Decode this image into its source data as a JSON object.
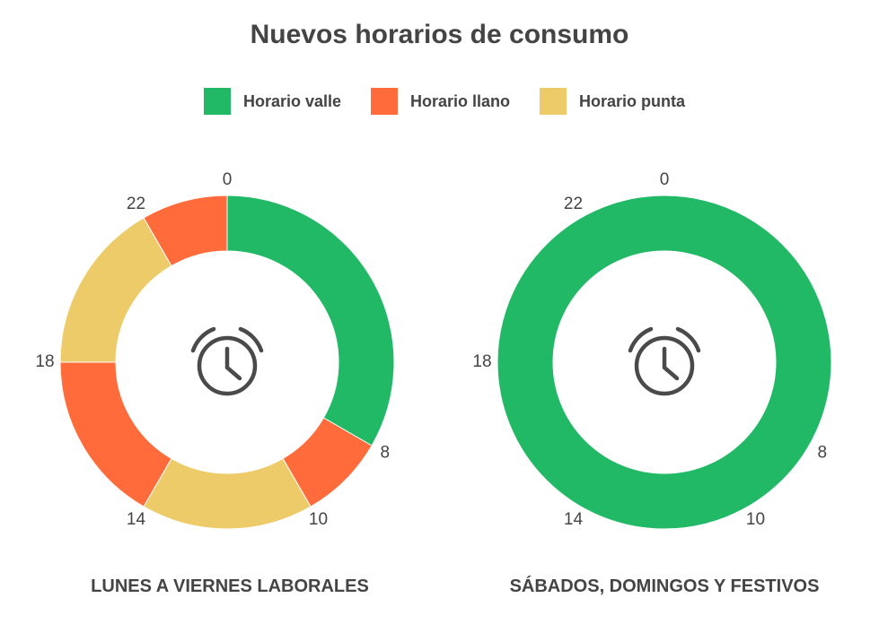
{
  "title": "Nuevos horarios de consumo",
  "legend": [
    {
      "label": "Horario valle",
      "color": "#22b966"
    },
    {
      "label": "Horario llano",
      "color": "#ff6b3a"
    },
    {
      "label": "Horario punta",
      "color": "#eecb69"
    }
  ],
  "chart_data": [
    {
      "type": "donut",
      "caption": "LUNES A VIERNES LABORALES",
      "unit_total": 24,
      "ticks": [
        0,
        8,
        10,
        14,
        18,
        22
      ],
      "segments": [
        {
          "start": 0,
          "end": 8,
          "category": "Horario valle"
        },
        {
          "start": 8,
          "end": 10,
          "category": "Horario llano"
        },
        {
          "start": 10,
          "end": 14,
          "category": "Horario punta"
        },
        {
          "start": 14,
          "end": 18,
          "category": "Horario llano"
        },
        {
          "start": 18,
          "end": 22,
          "category": "Horario punta"
        },
        {
          "start": 22,
          "end": 24,
          "category": "Horario llano"
        }
      ]
    },
    {
      "type": "donut",
      "caption": "SÁBADOS, DOMINGOS Y FESTIVOS",
      "unit_total": 24,
      "ticks": [
        0,
        8,
        10,
        14,
        18,
        22
      ],
      "segments": [
        {
          "start": 0,
          "end": 24,
          "category": "Horario valle"
        }
      ]
    }
  ],
  "center_icon": "alarm-clock-icon"
}
